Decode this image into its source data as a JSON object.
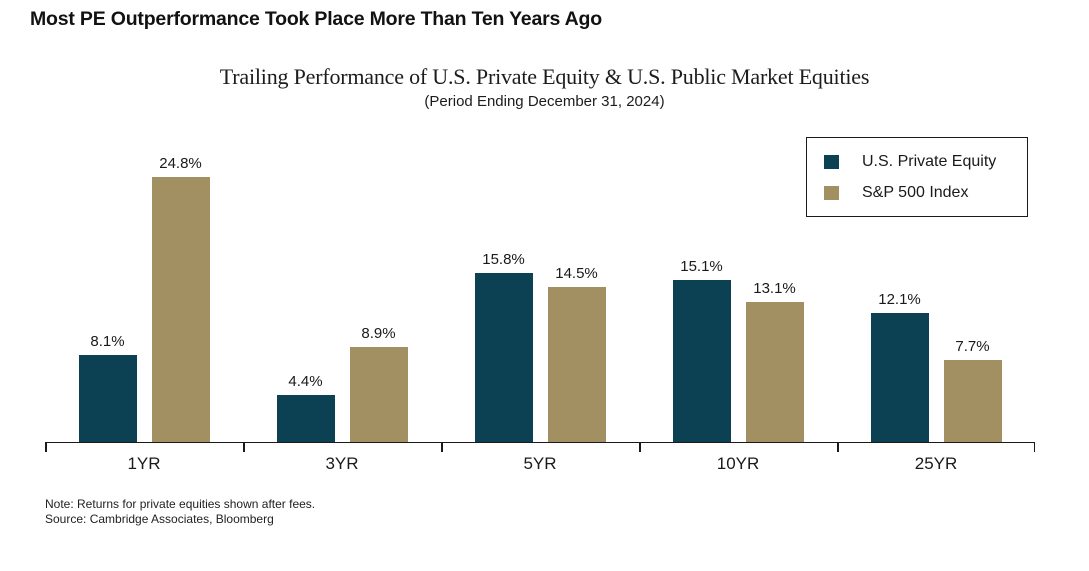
{
  "page": {
    "heading": "Most PE Outperformance Took Place More Than Ten Years Ago"
  },
  "footer": {
    "note": "Note: Returns for private equities shown after fees.",
    "source": "Source: Cambridge Associates, Bloomberg"
  },
  "chart_data": {
    "type": "bar",
    "title": "Trailing Performance of U.S. Private Equity & U.S. Public Market Equities",
    "subtitle": "(Period Ending December 31, 2024)",
    "categories": [
      "1YR",
      "3YR",
      "5YR",
      "10YR",
      "25YR"
    ],
    "series": [
      {
        "name": "U.S. Private Equity",
        "color": "#0B4152",
        "values": [
          8.1,
          4.4,
          15.8,
          15.1,
          12.1
        ]
      },
      {
        "name": "S&P 500 Index",
        "color": "#A29063",
        "values": [
          24.8,
          8.9,
          14.5,
          13.1,
          7.7
        ]
      }
    ],
    "value_suffix": "%",
    "ylim": [
      0,
      26
    ],
    "grid": false,
    "y_axis_visible": false,
    "legend_position": "top-right"
  }
}
